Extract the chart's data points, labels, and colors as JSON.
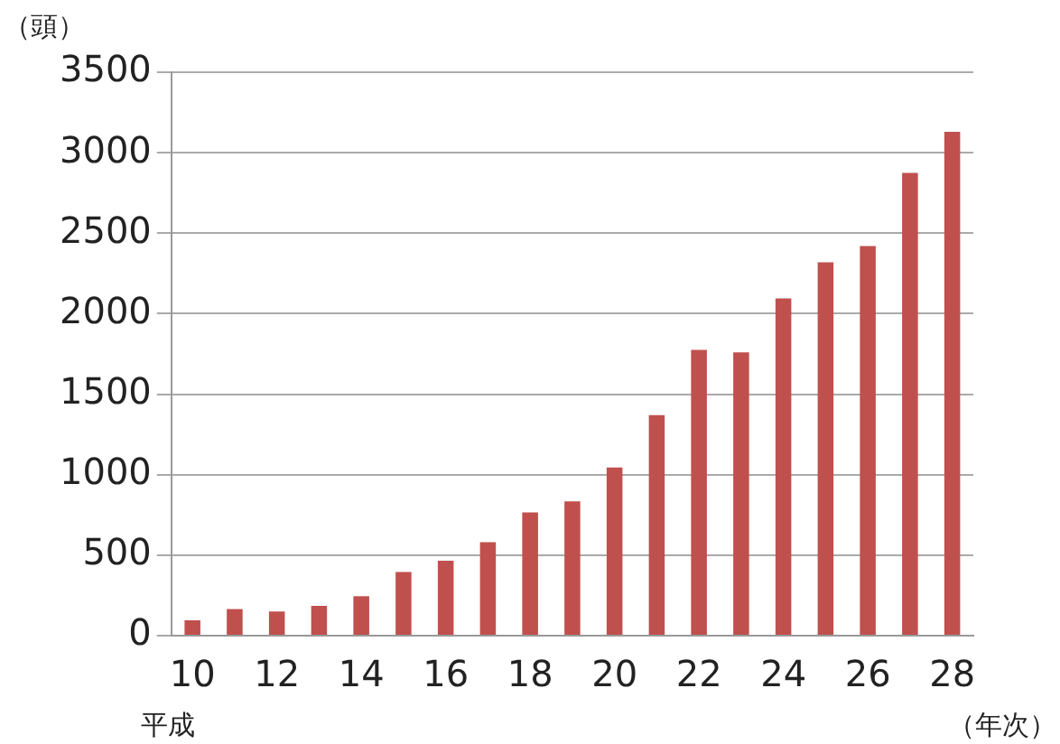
{
  "chart_data": {
    "type": "bar",
    "ylabel": "（頭）",
    "xlabel": "（年次）",
    "annotations": [
      "平成"
    ],
    "categories": [
      "10",
      null,
      "12",
      null,
      "14",
      null,
      "16",
      null,
      "18",
      null,
      "20",
      null,
      "22",
      null,
      "24",
      null,
      "26",
      null,
      "28"
    ],
    "values": [
      95,
      165,
      150,
      185,
      245,
      395,
      465,
      580,
      765,
      835,
      1045,
      1370,
      1775,
      1760,
      2095,
      2320,
      2420,
      2875,
      3130
    ],
    "color": "#c0504d",
    "ylim": [
      0,
      3500
    ],
    "yticks": [
      0,
      500,
      1000,
      1500,
      2000,
      2500,
      3000,
      3500
    ],
    "grid": "y",
    "legend": false
  }
}
